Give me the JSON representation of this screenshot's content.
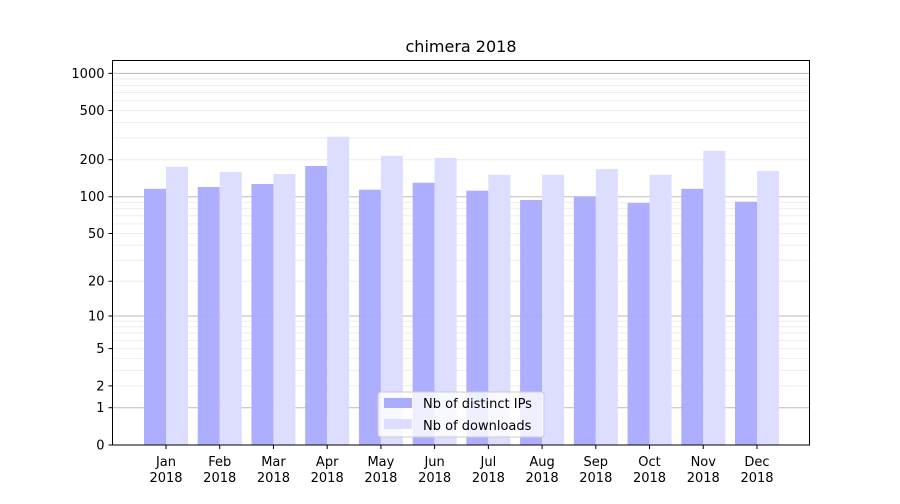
{
  "chart_data": {
    "type": "bar",
    "title": "chimera 2018",
    "xlabel": "",
    "ylabel": "",
    "yscale": "log(1+x)",
    "ylim": [
      0,
      1270
    ],
    "yticks": [
      0,
      1,
      2,
      5,
      10,
      20,
      50,
      100,
      200,
      500,
      1000
    ],
    "grid": true,
    "legend_position": "bottom-center",
    "categories": [
      "Jan\n2018",
      "Feb\n2018",
      "Mar\n2018",
      "Apr\n2018",
      "May\n2018",
      "Jun\n2018",
      "Jul\n2018",
      "Aug\n2018",
      "Sep\n2018",
      "Oct\n2018",
      "Nov\n2018",
      "Dec\n2018"
    ],
    "series": [
      {
        "name": "Nb of distinct IPs",
        "color": "#aaaaff",
        "values": [
          116,
          120,
          127,
          178,
          114,
          130,
          112,
          94,
          100,
          89,
          116,
          91
        ]
      },
      {
        "name": "Nb of downloads",
        "color": "#ddddff",
        "values": [
          175,
          159,
          153,
          307,
          215,
          207,
          151,
          151,
          168,
          151,
          236,
          162
        ]
      }
    ]
  }
}
